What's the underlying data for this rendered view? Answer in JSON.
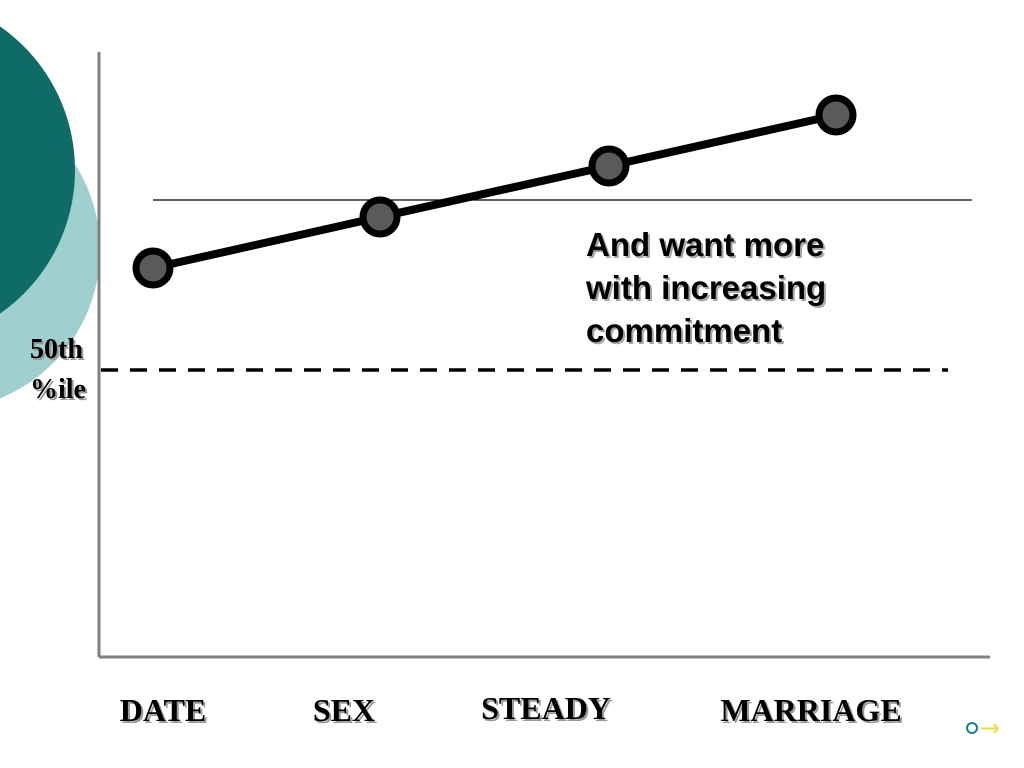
{
  "theme": {
    "deco_dark": "#0f6b66",
    "deco_light": "#9fcfcf",
    "line_color": "#000000",
    "marker_fill": "#5a5a5a",
    "nav_circle": "#1f7f7f",
    "nav_arrow": "#e8e23a"
  },
  "chart_data": {
    "type": "line",
    "categories": [
      "DATE",
      "SEX",
      "STEADY",
      "MARRIAGE"
    ],
    "values": [
      0.3,
      0.45,
      0.6,
      0.75
    ],
    "ylim": [
      0,
      1
    ],
    "reference_lines": [
      {
        "label": "50th %ile",
        "value": 0.0,
        "style": "dashed"
      },
      {
        "label": "",
        "value": 0.5,
        "style": "solid"
      }
    ],
    "ylabel_lines": [
      "50th",
      "%ile"
    ],
    "annotation_lines": [
      "And want more",
      "with increasing",
      "commitment"
    ],
    "grid": false
  },
  "nav": {
    "circle_icon": "circle-outline-icon",
    "arrow_icon": "right-arrow-icon",
    "arrow_glyph": "→"
  }
}
